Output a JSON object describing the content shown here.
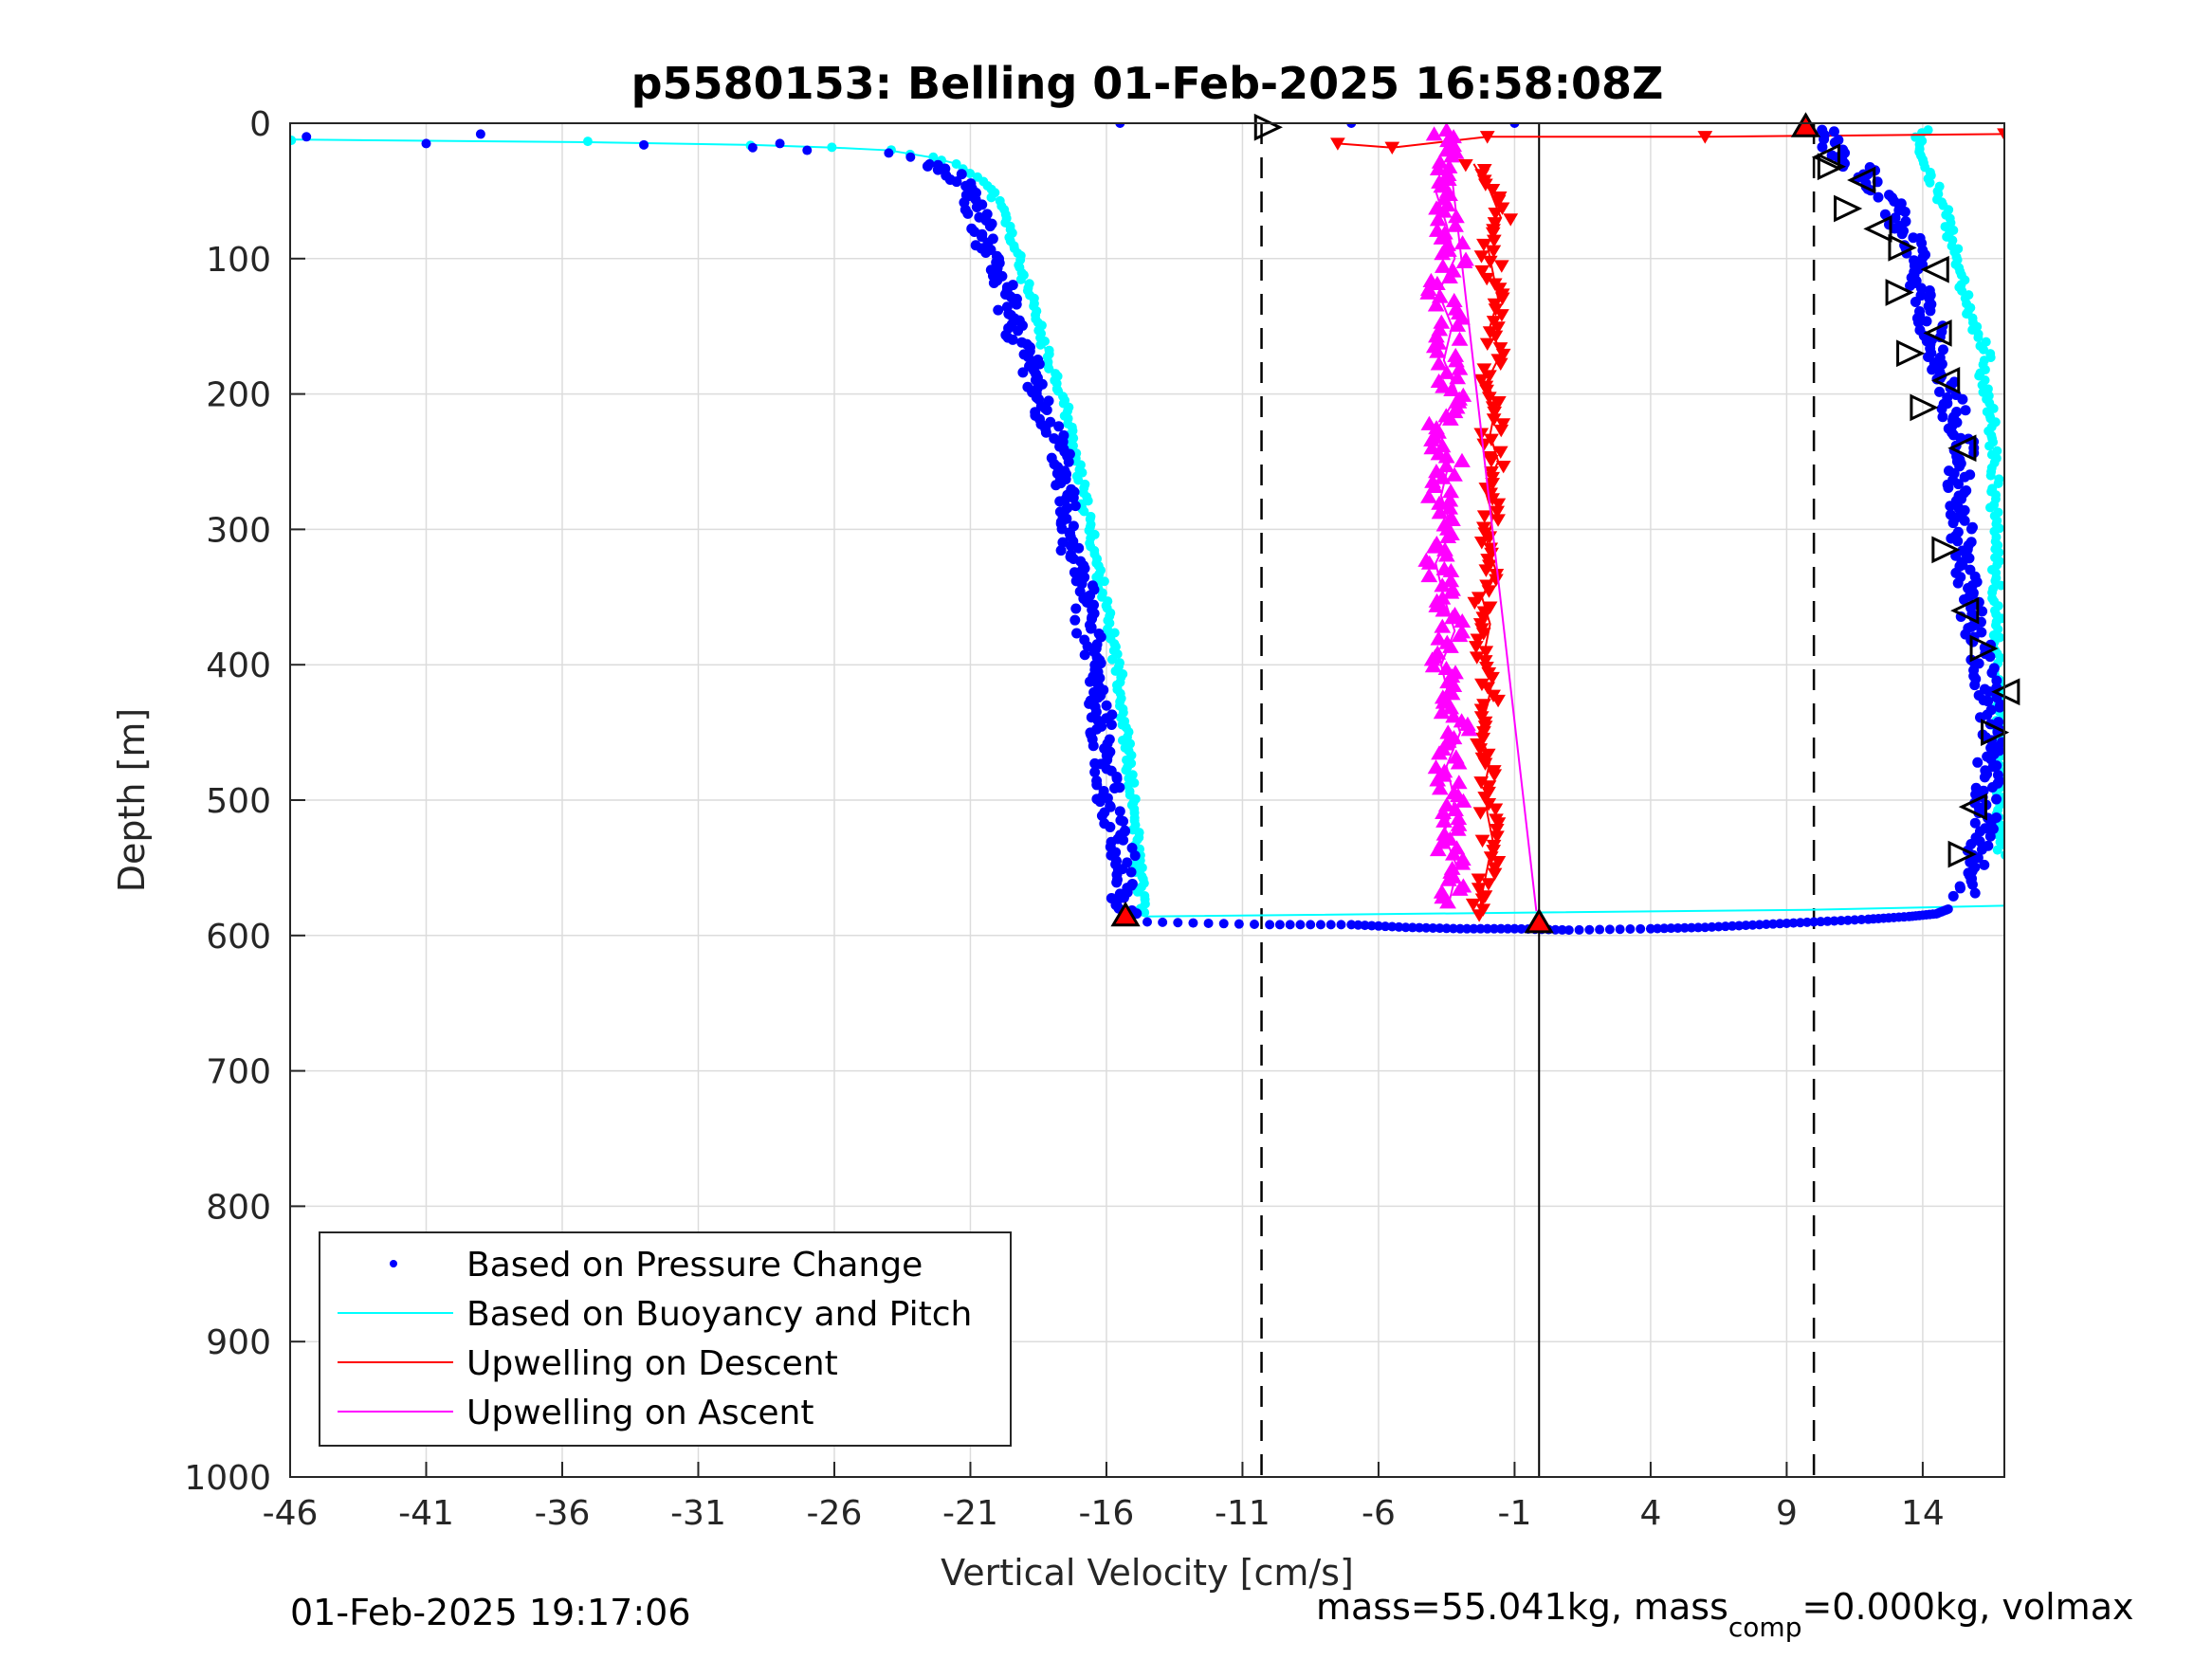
{
  "chart_data": {
    "type": "scatter",
    "title": "p5580153: Belling 01-Feb-2025 16:58:08Z",
    "xlabel": "Vertical Velocity [cm/s]",
    "ylabel": "Depth [m]",
    "xlim": [
      -46,
      17
    ],
    "ylim": [
      0,
      1000
    ],
    "y_reversed": true,
    "grid": true,
    "x_ticks": [
      -46,
      -41,
      -36,
      -31,
      -26,
      -21,
      -16,
      -11,
      -6,
      -1,
      4,
      9,
      14
    ],
    "y_ticks": [
      0,
      100,
      200,
      300,
      400,
      500,
      600,
      700,
      800,
      900,
      1000
    ],
    "legend_position": "bottom-left",
    "reference_lines": {
      "dashed_x": [
        -10.3,
        10
      ],
      "solid_x": [
        -0.1
      ]
    },
    "series": [
      {
        "name": "Based on Pressure Change",
        "color": "#0000ff",
        "marker": "dot",
        "descent": [
          [
            -45.4,
            10
          ],
          [
            -41,
            15
          ],
          [
            -39,
            8
          ],
          [
            -33,
            16
          ],
          [
            -29,
            18
          ],
          [
            -28,
            15
          ],
          [
            -27,
            20
          ],
          [
            -24,
            22
          ],
          [
            -23.2,
            25
          ],
          [
            -22.5,
            30
          ],
          [
            -21.8,
            35
          ],
          [
            -21.2,
            45
          ],
          [
            -20.8,
            60
          ],
          [
            -20.6,
            80
          ],
          [
            -20.3,
            100
          ],
          [
            -19.8,
            120
          ],
          [
            -19.5,
            140
          ],
          [
            -19.2,
            160
          ],
          [
            -18.8,
            180
          ],
          [
            -18.5,
            200
          ],
          [
            -18.1,
            220
          ],
          [
            -17.8,
            240
          ],
          [
            -17.6,
            260
          ],
          [
            -17.4,
            280
          ],
          [
            -17.3,
            300
          ],
          [
            -17.2,
            320
          ],
          [
            -16.8,
            340
          ],
          [
            -16.9,
            360
          ],
          [
            -16.6,
            380
          ],
          [
            -16.5,
            400
          ],
          [
            -16.4,
            420
          ],
          [
            -16.2,
            440
          ],
          [
            -16.1,
            460
          ],
          [
            -16,
            480
          ],
          [
            -15.9,
            500
          ],
          [
            -15.6,
            520
          ],
          [
            -15.4,
            540
          ],
          [
            -15.3,
            560
          ],
          [
            -15.4,
            575
          ],
          [
            -15.3,
            585
          ]
        ],
        "bottom": [
          [
            -14.5,
            590
          ],
          [
            -10,
            592
          ],
          [
            -7,
            592
          ],
          [
            -5,
            594
          ],
          [
            -3,
            595
          ],
          [
            -1,
            595
          ],
          [
            1,
            596
          ],
          [
            4,
            595
          ],
          [
            6,
            594
          ],
          [
            8,
            592
          ],
          [
            10,
            590
          ],
          [
            12,
            588
          ],
          [
            13.5,
            586
          ],
          [
            14.5,
            584
          ],
          [
            15,
            580
          ]
        ],
        "ascent": [
          [
            15.5,
            570
          ],
          [
            16,
            540
          ],
          [
            16.3,
            510
          ],
          [
            16.4,
            480
          ],
          [
            16.6,
            450
          ],
          [
            16.4,
            420
          ],
          [
            16.1,
            390
          ],
          [
            15.8,
            360
          ],
          [
            15.5,
            330
          ],
          [
            15.4,
            300
          ],
          [
            15.3,
            270
          ],
          [
            15.5,
            240
          ],
          [
            15.1,
            210
          ],
          [
            14.7,
            180
          ],
          [
            14.3,
            150
          ],
          [
            13.9,
            120
          ],
          [
            13.6,
            90
          ],
          [
            13.1,
            70
          ],
          [
            12.5,
            50
          ],
          [
            11.8,
            35
          ],
          [
            11,
            25
          ],
          [
            10.5,
            15
          ],
          [
            10.3,
            5
          ],
          [
            -1,
            0
          ],
          [
            -15.5,
            0
          ],
          [
            -7,
            0
          ]
        ]
      },
      {
        "name": "Based on Buoyancy and Pitch",
        "color": "#00ffff",
        "marker": "line+dot",
        "descent": [
          [
            -46,
            12
          ],
          [
            -35,
            14
          ],
          [
            -29,
            16
          ],
          [
            -26,
            18
          ],
          [
            -24,
            20
          ],
          [
            -22.5,
            25
          ],
          [
            -21.5,
            30
          ],
          [
            -20.6,
            40
          ],
          [
            -20.1,
            55
          ],
          [
            -19.7,
            70
          ],
          [
            -19.4,
            90
          ],
          [
            -19.1,
            110
          ],
          [
            -18.8,
            130
          ],
          [
            -18.5,
            150
          ],
          [
            -18.2,
            170
          ],
          [
            -17.8,
            190
          ],
          [
            -17.5,
            210
          ],
          [
            -17.3,
            230
          ],
          [
            -17.1,
            250
          ],
          [
            -16.9,
            270
          ],
          [
            -16.7,
            290
          ],
          [
            -16.5,
            310
          ],
          [
            -16.3,
            330
          ],
          [
            -16.1,
            350
          ],
          [
            -15.9,
            370
          ],
          [
            -15.7,
            390
          ],
          [
            -15.5,
            410
          ],
          [
            -15.4,
            430
          ],
          [
            -15.3,
            450
          ],
          [
            -15.2,
            470
          ],
          [
            -15.1,
            490
          ],
          [
            -15,
            510
          ],
          [
            -14.9,
            530
          ],
          [
            -14.8,
            550
          ],
          [
            -14.7,
            570
          ],
          [
            -14.6,
            583
          ]
        ],
        "bottom": [
          [
            -14.6,
            586
          ],
          [
            0,
            583
          ],
          [
            10,
            581
          ],
          [
            17,
            578
          ]
        ],
        "ascent": [
          [
            16.9,
            540
          ],
          [
            16.6,
            230
          ],
          [
            16.5,
            210
          ],
          [
            16.2,
            190
          ],
          [
            16.4,
            170
          ],
          [
            15.9,
            150
          ],
          [
            15.6,
            130
          ],
          [
            15.4,
            110
          ],
          [
            15.1,
            90
          ],
          [
            14.9,
            70
          ],
          [
            14.5,
            50
          ],
          [
            14.2,
            30
          ],
          [
            13.8,
            10
          ],
          [
            14.2,
            5
          ]
        ]
      },
      {
        "name": "Upwelling on Descent",
        "color": "#ff0000",
        "marker": "triangle-down",
        "points": [
          [
            -7.5,
            15
          ],
          [
            -5.5,
            18
          ],
          [
            -2,
            10
          ],
          [
            6,
            10
          ],
          [
            17,
            8
          ],
          [
            -2.5,
            30
          ],
          [
            -1.9,
            50
          ],
          [
            -1.5,
            70
          ],
          [
            -2,
            90
          ],
          [
            -1.8,
            110
          ],
          [
            -1.6,
            130
          ],
          [
            -1.9,
            150
          ],
          [
            -1.5,
            170
          ],
          [
            -2,
            190
          ],
          [
            -1.7,
            210
          ],
          [
            -1.9,
            230
          ],
          [
            -1.6,
            250
          ],
          [
            -2.1,
            270
          ],
          [
            -1.8,
            290
          ],
          [
            -2,
            310
          ],
          [
            -1.7,
            330
          ],
          [
            -2.2,
            350
          ],
          [
            -1.9,
            370
          ],
          [
            -2.1,
            390
          ],
          [
            -1.8,
            410
          ],
          [
            -2,
            430
          ],
          [
            -2.3,
            450
          ],
          [
            -1.9,
            470
          ],
          [
            -2.1,
            490
          ],
          [
            -2,
            510
          ],
          [
            -1.8,
            530
          ],
          [
            -2,
            550
          ],
          [
            -2.2,
            570
          ],
          [
            -2.3,
            585
          ]
        ]
      },
      {
        "name": "Upwelling on Ascent",
        "color": "#ff00ff",
        "marker": "triangle-up",
        "points": [
          [
            -3.4,
            575
          ],
          [
            -3.1,
            550
          ],
          [
            -3.6,
            525
          ],
          [
            -3.2,
            500
          ],
          [
            -3.5,
            475
          ],
          [
            -3,
            450
          ],
          [
            -3.4,
            425
          ],
          [
            -3.7,
            400
          ],
          [
            -3.2,
            375
          ],
          [
            -3.6,
            350
          ],
          [
            -3.9,
            325
          ],
          [
            -3.3,
            300
          ],
          [
            -3.7,
            275
          ],
          [
            -3.4,
            250
          ],
          [
            -3.8,
            225
          ],
          [
            -3.1,
            200
          ],
          [
            -3.6,
            175
          ],
          [
            -3.3,
            150
          ],
          [
            -3.8,
            125
          ],
          [
            -3.2,
            100
          ],
          [
            -3.5,
            75
          ],
          [
            -3.9,
            50
          ],
          [
            -3.3,
            25
          ],
          [
            -3.5,
            5
          ],
          [
            -0.2,
            582
          ]
        ]
      }
    ],
    "markers": {
      "red_triangles": [
        [
          9.7,
          2
        ],
        [
          -15.3,
          585
        ],
        [
          -0.1,
          590
        ]
      ],
      "open_triangles": [
        [
          -10.1,
          3
        ],
        [
          10.5,
          25
        ],
        [
          10.6,
          32
        ],
        [
          11.8,
          42
        ],
        [
          11.2,
          63
        ],
        [
          12.4,
          78
        ],
        [
          13.2,
          92
        ],
        [
          14.5,
          108
        ],
        [
          13.1,
          125
        ],
        [
          14.6,
          155
        ],
        [
          13.5,
          170
        ],
        [
          14.9,
          190
        ],
        [
          14.0,
          210
        ],
        [
          15.5,
          240
        ],
        [
          14.8,
          315
        ],
        [
          15.6,
          360
        ],
        [
          16.2,
          388
        ],
        [
          17.1,
          420
        ],
        [
          16.6,
          450
        ],
        [
          15.9,
          505
        ],
        [
          15.4,
          540
        ]
      ]
    }
  },
  "legend": {
    "items": [
      {
        "label": "Based on Pressure Change",
        "color": "#0000ff",
        "kind": "dot"
      },
      {
        "label": "Based on Buoyancy and Pitch",
        "color": "#00ffff",
        "kind": "line"
      },
      {
        "label": "Upwelling on Descent",
        "color": "#ff0000",
        "kind": "line"
      },
      {
        "label": "Upwelling on Ascent",
        "color": "#ff00ff",
        "kind": "line"
      }
    ]
  },
  "footer": {
    "timestamp": "01-Feb-2025 19:17:06",
    "mass_text": "mass=55.041kg, mass",
    "mass_sub": "comp",
    "mass_tail": "=0.000kg, volmax"
  }
}
